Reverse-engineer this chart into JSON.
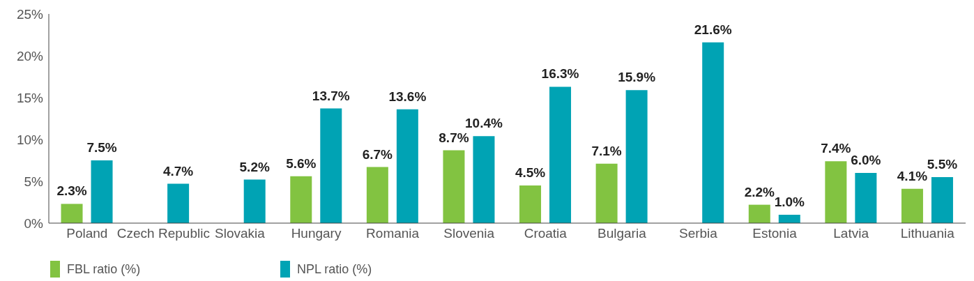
{
  "chart_data": {
    "type": "bar",
    "categories": [
      "Poland",
      "Czech Republic",
      "Slovakia",
      "Hungary",
      "Romania",
      "Slovenia",
      "Croatia",
      "Bulgaria",
      "Serbia",
      "Estonia",
      "Latvia",
      "Lithuania"
    ],
    "series": [
      {
        "name": "FBL ratio (%)",
        "color": "#82c341",
        "values": [
          2.3,
          null,
          null,
          5.6,
          6.7,
          8.7,
          4.5,
          7.1,
          null,
          2.2,
          7.4,
          4.1
        ],
        "value_labels": [
          "2.3%",
          null,
          null,
          "5.6%",
          "6.7%",
          "8.7%",
          "4.5%",
          "7.1%",
          null,
          "2.2%",
          "7.4%",
          "4.1%"
        ]
      },
      {
        "name": "NPL ratio (%)",
        "color": "#00a3b4",
        "values": [
          7.5,
          4.7,
          5.2,
          13.7,
          13.6,
          10.4,
          16.3,
          15.9,
          21.6,
          1.0,
          6.0,
          5.5
        ],
        "value_labels": [
          "7.5%",
          "4.7%",
          "5.2%",
          "13.7%",
          "13.6%",
          "10.4%",
          "16.3%",
          "15.9%",
          "21.6%",
          "1.0%",
          "6.0%",
          "5.5%"
        ]
      }
    ],
    "ylim": [
      0,
      25
    ],
    "yticks": [
      {
        "value": 0,
        "label": "0%"
      },
      {
        "value": 5,
        "label": "5%"
      },
      {
        "value": 10,
        "label": "10%"
      },
      {
        "value": 15,
        "label": "15%"
      },
      {
        "value": 20,
        "label": "20%"
      },
      {
        "value": 25,
        "label": "25%"
      }
    ],
    "grid": false,
    "legend": "bottom left"
  }
}
